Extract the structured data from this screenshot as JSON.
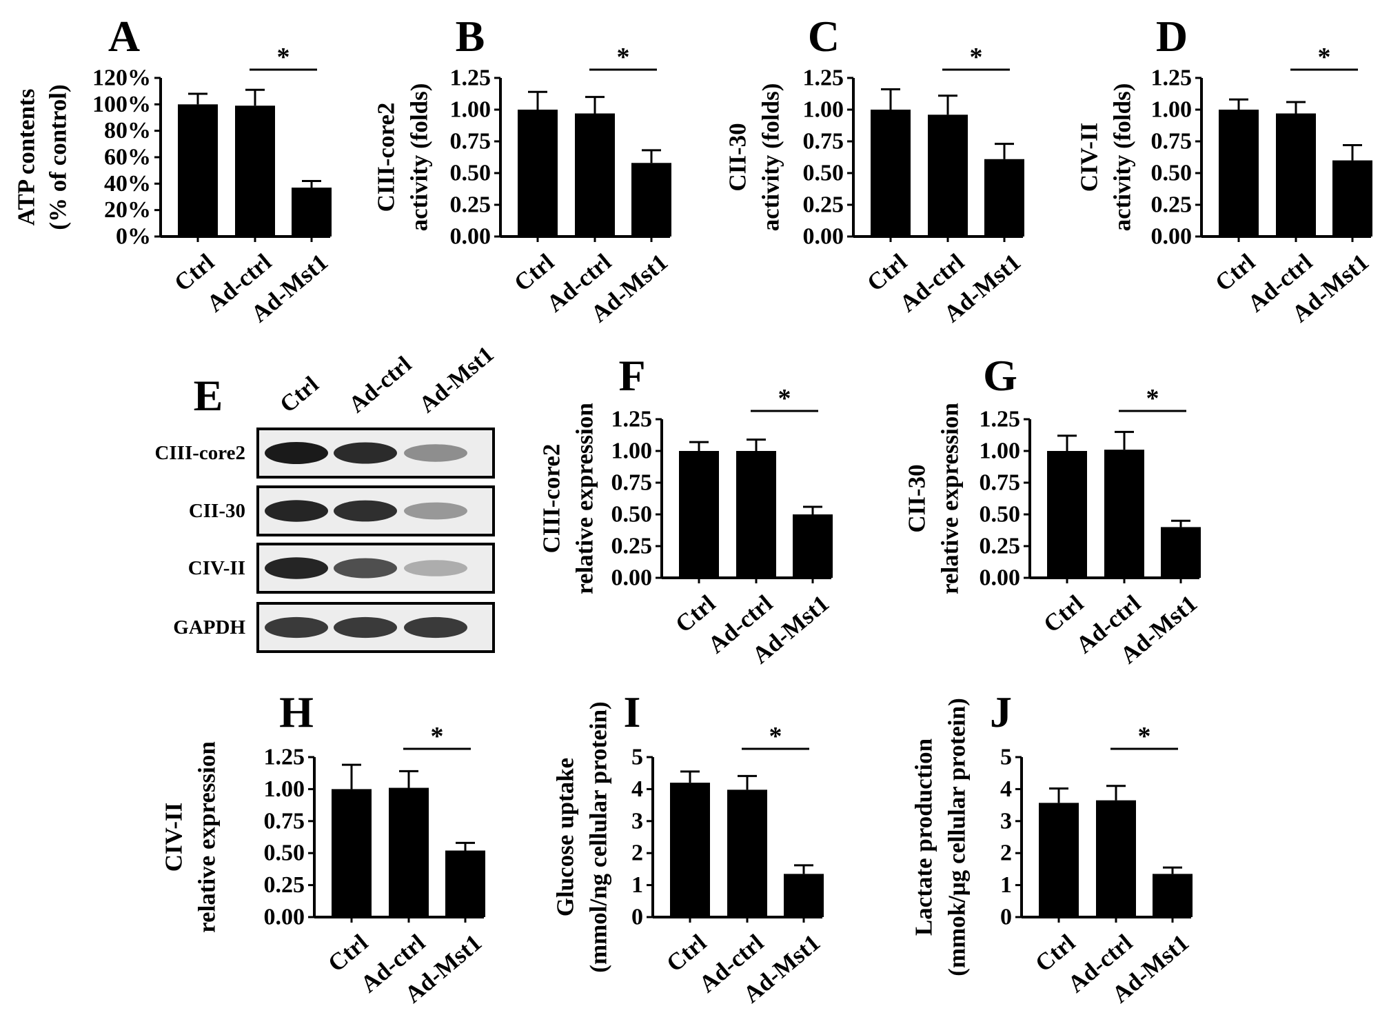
{
  "categories": [
    "Ctrl",
    "Ad-ctrl",
    "Ad-Mst1"
  ],
  "bar_color": "#000000",
  "significance_marker": "*",
  "chart_data": [
    {
      "panel": "A",
      "type": "bar",
      "ylabel_lines": [
        "ATP contents",
        "(% of control)"
      ],
      "ylim": [
        0,
        120
      ],
      "yticks": [
        0,
        20,
        40,
        60,
        80,
        100,
        120
      ],
      "ytick_labels": [
        "0%",
        "20%",
        "40%",
        "60%",
        "80%",
        "100%",
        "120%"
      ],
      "categories": [
        "Ctrl",
        "Ad-ctrl",
        "Ad-Mst1"
      ],
      "values": [
        100,
        99,
        37
      ],
      "errors": [
        8,
        12,
        5
      ],
      "significance": {
        "from": 1,
        "to": 2,
        "label": "*"
      }
    },
    {
      "panel": "B",
      "type": "bar",
      "ylabel_lines": [
        "CIII-core2",
        "activity (folds)"
      ],
      "ylim": [
        0,
        1.25
      ],
      "yticks": [
        0,
        0.25,
        0.5,
        0.75,
        1.0,
        1.25
      ],
      "ytick_labels": [
        "0.00",
        "0.25",
        "0.50",
        "0.75",
        "1.00",
        "1.25"
      ],
      "categories": [
        "Ctrl",
        "Ad-ctrl",
        "Ad-Mst1"
      ],
      "values": [
        1.0,
        0.97,
        0.58
      ],
      "errors": [
        0.14,
        0.13,
        0.1
      ],
      "significance": {
        "from": 1,
        "to": 2,
        "label": "*"
      }
    },
    {
      "panel": "C",
      "type": "bar",
      "ylabel_lines": [
        "CII-30",
        "activity (folds)"
      ],
      "ylim": [
        0,
        1.25
      ],
      "yticks": [
        0,
        0.25,
        0.5,
        0.75,
        1.0,
        1.25
      ],
      "ytick_labels": [
        "0.00",
        "0.25",
        "0.50",
        "0.75",
        "1.00",
        "1.25"
      ],
      "categories": [
        "Ctrl",
        "Ad-ctrl",
        "Ad-Mst1"
      ],
      "values": [
        1.0,
        0.96,
        0.61
      ],
      "errors": [
        0.16,
        0.15,
        0.12
      ],
      "significance": {
        "from": 1,
        "to": 2,
        "label": "*"
      }
    },
    {
      "panel": "D",
      "type": "bar",
      "ylabel_lines": [
        "CIV-II",
        "activity (folds)"
      ],
      "ylim": [
        0,
        1.25
      ],
      "yticks": [
        0,
        0.25,
        0.5,
        0.75,
        1.0,
        1.25
      ],
      "ytick_labels": [
        "0.00",
        "0.25",
        "0.50",
        "0.75",
        "1.00",
        "1.25"
      ],
      "categories": [
        "Ctrl",
        "Ad-ctrl",
        "Ad-Mst1"
      ],
      "values": [
        1.0,
        0.97,
        0.6
      ],
      "errors": [
        0.08,
        0.09,
        0.12
      ],
      "significance": {
        "from": 1,
        "to": 2,
        "label": "*"
      }
    },
    {
      "panel": "F",
      "type": "bar",
      "ylabel_lines": [
        "CIII-core2",
        "relative expression"
      ],
      "ylim": [
        0,
        1.25
      ],
      "yticks": [
        0,
        0.25,
        0.5,
        0.75,
        1.0,
        1.25
      ],
      "ytick_labels": [
        "0.00",
        "0.25",
        "0.50",
        "0.75",
        "1.00",
        "1.25"
      ],
      "categories": [
        "Ctrl",
        "Ad-ctrl",
        "Ad-Mst1"
      ],
      "values": [
        1.0,
        1.0,
        0.5
      ],
      "errors": [
        0.07,
        0.09,
        0.06
      ],
      "significance": {
        "from": 1,
        "to": 2,
        "label": "*"
      }
    },
    {
      "panel": "G",
      "type": "bar",
      "ylabel_lines": [
        "CII-30",
        "relative expression"
      ],
      "ylim": [
        0,
        1.25
      ],
      "yticks": [
        0,
        0.25,
        0.5,
        0.75,
        1.0,
        1.25
      ],
      "ytick_labels": [
        "0.00",
        "0.25",
        "0.50",
        "0.75",
        "1.00",
        "1.25"
      ],
      "categories": [
        "Ctrl",
        "Ad-ctrl",
        "Ad-Mst1"
      ],
      "values": [
        1.0,
        1.01,
        0.4
      ],
      "errors": [
        0.12,
        0.14,
        0.05
      ],
      "significance": {
        "from": 1,
        "to": 2,
        "label": "*"
      }
    },
    {
      "panel": "H",
      "type": "bar",
      "ylabel_lines": [
        "CIV-II",
        "relative expression"
      ],
      "ylim": [
        0,
        1.25
      ],
      "yticks": [
        0,
        0.25,
        0.5,
        0.75,
        1.0,
        1.25
      ],
      "ytick_labels": [
        "0.00",
        "0.25",
        "0.50",
        "0.75",
        "1.00",
        "1.25"
      ],
      "categories": [
        "Ctrl",
        "Ad-ctrl",
        "Ad-Mst1"
      ],
      "values": [
        1.0,
        1.01,
        0.52
      ],
      "errors": [
        0.19,
        0.13,
        0.06
      ],
      "significance": {
        "from": 1,
        "to": 2,
        "label": "*"
      }
    },
    {
      "panel": "I",
      "type": "bar",
      "ylabel_lines": [
        "Glucose uptake",
        "(mmol/ng cellular protein)"
      ],
      "ylim": [
        0,
        5
      ],
      "yticks": [
        0,
        1,
        2,
        3,
        4,
        5
      ],
      "ytick_labels": [
        "0",
        "1",
        "2",
        "3",
        "4",
        "5"
      ],
      "categories": [
        "Ctrl",
        "Ad-ctrl",
        "Ad-Mst1"
      ],
      "values": [
        4.2,
        3.98,
        1.35
      ],
      "errors": [
        0.35,
        0.43,
        0.27
      ],
      "significance": {
        "from": 1,
        "to": 2,
        "label": "*"
      }
    },
    {
      "panel": "J",
      "type": "bar",
      "ylabel_lines": [
        "Lactate production",
        "(mmok/μg cellular protein)"
      ],
      "ylim": [
        0,
        5
      ],
      "yticks": [
        0,
        1,
        2,
        3,
        4,
        5
      ],
      "ytick_labels": [
        "0",
        "1",
        "2",
        "3",
        "4",
        "5"
      ],
      "categories": [
        "Ctrl",
        "Ad-ctrl",
        "Ad-Mst1"
      ],
      "values": [
        3.57,
        3.65,
        1.35
      ],
      "errors": [
        0.45,
        0.45,
        0.2
      ],
      "significance": {
        "from": 1,
        "to": 2,
        "label": "*"
      }
    }
  ],
  "blot": {
    "panel": "E",
    "lanes": [
      "Ctrl",
      "Ad-ctrl",
      "Ad-Mst1"
    ],
    "rows": [
      {
        "label": "CIII-core2",
        "intensities": [
          1.0,
          0.92,
          0.45
        ]
      },
      {
        "label": "CII-30",
        "intensities": [
          0.95,
          0.9,
          0.4
        ]
      },
      {
        "label": "CIV-II",
        "intensities": [
          0.95,
          0.75,
          0.3
        ]
      },
      {
        "label": "GAPDH",
        "intensities": [
          0.85,
          0.85,
          0.85
        ]
      }
    ]
  }
}
